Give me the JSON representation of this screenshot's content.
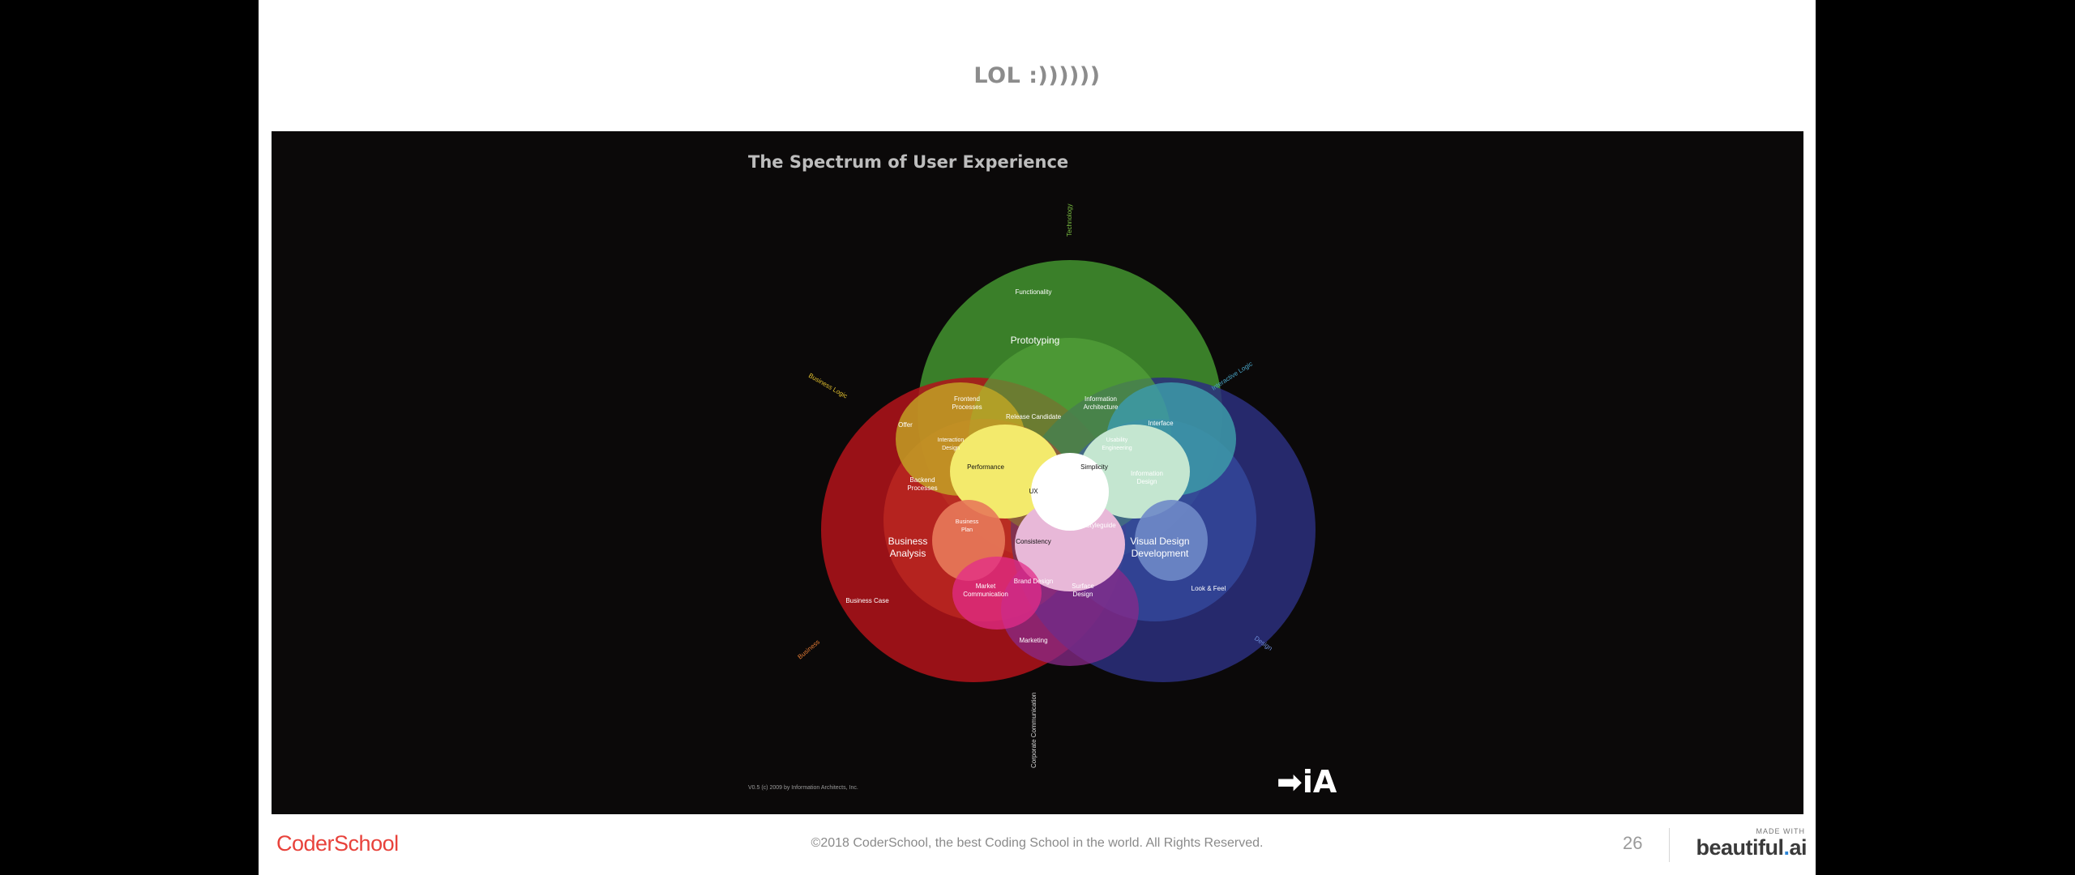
{
  "slide": {
    "title": "LOL :))))))",
    "page_number": "26"
  },
  "figure": {
    "title": "The Spectrum of User Experience",
    "credit": "V0.5 (c) 2009 by Information Architects, Inc.",
    "logo_text": "➡iA",
    "axis_labels": {
      "technology": "Technology",
      "business_logic": "Business Logic",
      "interactive_logic": "Interactive Logic",
      "business": "Business",
      "design": "Design",
      "corporate_communication": "Corporate Communication"
    },
    "regions": {
      "functionality": "Functionality",
      "prototyping": "Prototyping",
      "frontend_processes_1": "Frontend",
      "frontend_processes_2": "Processes",
      "information_architecture_1": "Information",
      "information_architecture_2": "Architecture",
      "offer": "Offer",
      "release_candidate": "Release Candidate",
      "interface": "Interface",
      "interaction_design_1": "Interaction",
      "interaction_design_2": "Design",
      "usability_engineering_1": "Usability",
      "usability_engineering_2": "Engineering",
      "performance": "Performance",
      "simplicity": "Simplicity",
      "backend_processes_1": "Backend",
      "backend_processes_2": "Processes",
      "information_design_1": "Information",
      "information_design_2": "Design",
      "ux": "UX",
      "business_plan_1": "Business",
      "business_plan_2": "Plan",
      "styleguide": "Styleguide",
      "business_analysis_1": "Business",
      "business_analysis_2": "Analysis",
      "consistency": "Consistency",
      "visual_design_1": "Visual Design",
      "visual_design_2": "Development",
      "brand_design": "Brand Design",
      "market_communication_1": "Market",
      "market_communication_2": "Communication",
      "surface_design_1": "Surface",
      "surface_design_2": "Design",
      "look_and_feel": "Look & Feel",
      "business_case": "Business Case",
      "marketing": "Marketing"
    }
  },
  "footer": {
    "logo": "CoderSchool",
    "copyright": "©2018 CoderSchool, the best Coding School in the world. All Rights Reserved.",
    "made_with": "MADE WITH",
    "brand_main": "beautiful",
    "brand_dot": ".",
    "brand_end": "ai"
  },
  "colors": {
    "technology_circle": "#3f8a2c",
    "business_circle": "#b3131a",
    "design_circle": "#2b2f7e",
    "footer_logo": "#e8423b",
    "brand_dot": "#2a84d6"
  }
}
